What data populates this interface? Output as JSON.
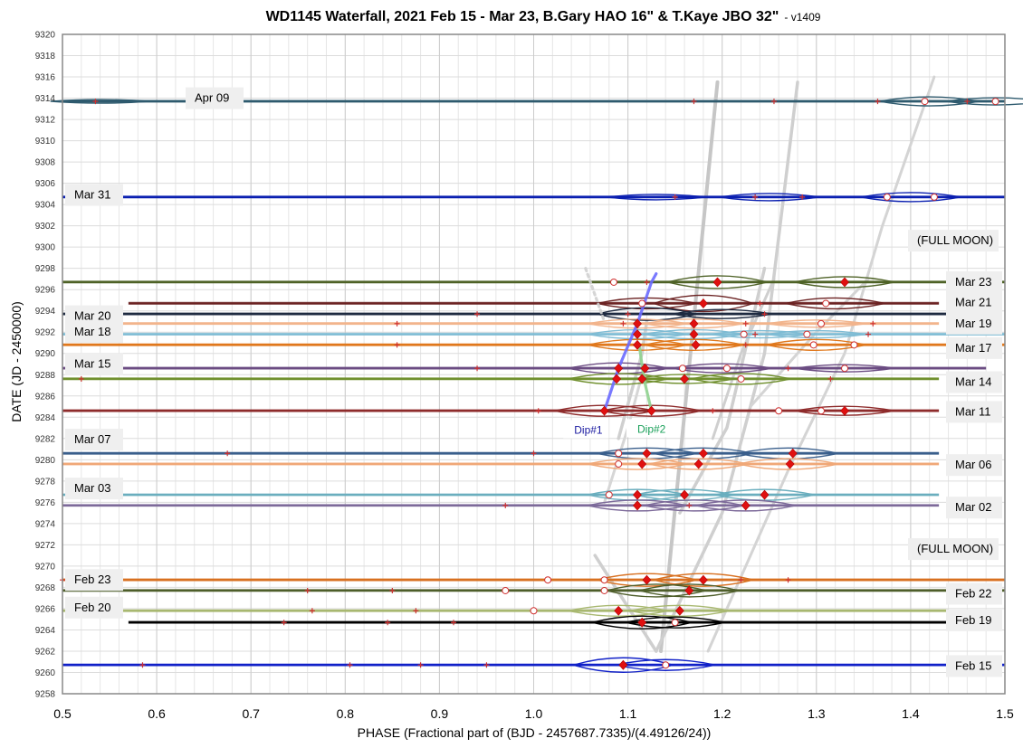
{
  "chart_data": {
    "type": "line",
    "title": "WD1145 Waterfall, 2021 Feb 15 - Mar 23, B.Gary HAO 16\" & T.Kaye JBO 32\"",
    "title_suffix": "- v1409",
    "xlabel": "PHASE (Fractional part of (BJD - 2457687.7335)/(4.49126/24))",
    "ylabel": "DATE (JD - 2450000)",
    "xlim": [
      0.5,
      1.5
    ],
    "ylim": [
      9258,
      9320
    ],
    "x_ticks": [
      "0.5",
      "0.6",
      "0.7",
      "0.8",
      "0.9",
      "1.0",
      "1.1",
      "1.2",
      "1.3",
      "1.4",
      "1.5"
    ],
    "y_ticks": [
      "9258",
      "9260",
      "9262",
      "9264",
      "9266",
      "9268",
      "9270",
      "9272",
      "9274",
      "9276",
      "9278",
      "9280",
      "9282",
      "9284",
      "9286",
      "9288",
      "9290",
      "9292",
      "9294",
      "9296",
      "9298",
      "9300",
      "9302",
      "9304",
      "9306",
      "9308",
      "9310",
      "9312",
      "9314",
      "9316",
      "9318",
      "9320"
    ],
    "grid": true,
    "traces": [
      {
        "date": "Apr 09",
        "y": 9313.7,
        "x0": 0.5,
        "x1": 1.5,
        "color": "#2e5a6e",
        "bumps": [
          [
            1.42,
            0.5
          ],
          [
            1.49,
            0.4
          ],
          [
            0.54,
            0.2
          ]
        ],
        "diamonds": [],
        "circles": [
          1.415,
          1.49
        ],
        "crosses": [
          0.535,
          1.17,
          1.255,
          1.365,
          1.46
        ]
      },
      {
        "date": "Mar 31",
        "y": 9304.7,
        "x0": 0.5,
        "x1": 1.5,
        "color": "#0a1fb0",
        "bumps": [
          [
            1.4,
            0.5
          ],
          [
            1.25,
            0.4
          ],
          [
            1.13,
            0.3
          ]
        ],
        "diamonds": [],
        "circles": [
          1.375,
          1.425
        ],
        "crosses": [
          1.15,
          1.235,
          1.285
        ]
      },
      {
        "date": "Mar 23",
        "y": 9296.7,
        "x0": 0.5,
        "x1": 1.5,
        "color": "#4e6226",
        "bumps": [
          [
            1.195,
            0.7
          ],
          [
            1.33,
            0.6
          ]
        ],
        "diamonds": [
          1.195,
          1.33
        ],
        "circles": [
          1.085
        ],
        "crosses": [
          1.12
        ]
      },
      {
        "date": "Mar 21",
        "y": 9294.7,
        "x0": 0.57,
        "x1": 1.43,
        "color": "#6b2222",
        "bumps": [
          [
            1.12,
            0.6
          ],
          [
            1.18,
            0.9
          ],
          [
            1.32,
            0.6
          ]
        ],
        "diamonds": [
          1.18
        ],
        "circles": [
          1.115,
          1.31
        ],
        "crosses": [
          1.24
        ]
      },
      {
        "date": "Mar 20",
        "y": 9293.7,
        "x0": 0.5,
        "x1": 1.45,
        "color": "#1e2a40",
        "bumps": [
          [
            1.12,
            0.7
          ],
          [
            1.2,
            0.5
          ]
        ],
        "diamonds": [],
        "circles": [],
        "crosses": [
          0.94,
          1.1,
          1.245
        ]
      },
      {
        "date": "Mar 19",
        "y": 9292.8,
        "x0": 0.55,
        "x1": 1.43,
        "color": "#f2b48c",
        "bumps": [
          [
            1.11,
            0.5
          ],
          [
            1.17,
            0.5
          ],
          [
            1.3,
            0.4
          ]
        ],
        "diamonds": [
          1.11,
          1.17
        ],
        "circles": [
          1.305
        ],
        "crosses": [
          0.855,
          1.095,
          1.225,
          1.36
        ]
      },
      {
        "date": "Mar 18",
        "y": 9291.8,
        "x0": 0.5,
        "x1": 1.5,
        "color": "#7fbcd4",
        "bumps": [
          [
            1.11,
            0.5
          ],
          [
            1.17,
            0.5
          ],
          [
            1.24,
            0.4
          ],
          [
            1.3,
            0.4
          ]
        ],
        "diamonds": [
          1.11,
          1.17
        ],
        "circles": [
          1.223,
          1.29
        ],
        "crosses": [
          1.235,
          1.355
        ]
      },
      {
        "date": "Mar 17",
        "y": 9290.8,
        "x0": 0.5,
        "x1": 1.5,
        "color": "#e0781c",
        "bumps": [
          [
            1.11,
            0.6
          ],
          [
            1.17,
            0.6
          ],
          [
            1.3,
            0.6
          ]
        ],
        "diamonds": [
          1.11,
          1.172
        ],
        "circles": [
          1.297,
          1.34
        ],
        "crosses": [
          0.855,
          1.225
        ]
      },
      {
        "date": "Mar 15",
        "y": 9288.6,
        "x0": 0.5,
        "x1": 1.48,
        "color": "#6b4c82",
        "bumps": [
          [
            1.09,
            0.6
          ],
          [
            1.2,
            0.5
          ],
          [
            1.33,
            0.4
          ]
        ],
        "diamonds": [
          1.09,
          1.118
        ],
        "circles": [
          1.158,
          1.205,
          1.33
        ],
        "crosses": [
          0.94,
          1.27
        ]
      },
      {
        "date": "Mar 14",
        "y": 9287.6,
        "x0": 0.5,
        "x1": 1.43,
        "color": "#70902e",
        "bumps": [
          [
            1.09,
            0.6
          ],
          [
            1.16,
            0.5
          ],
          [
            1.22,
            0.6
          ]
        ],
        "diamonds": [
          1.088,
          1.115,
          1.16
        ],
        "circles": [
          1.22
        ],
        "crosses": [
          0.52,
          1.315
        ]
      },
      {
        "date": "Mar 11",
        "y": 9284.6,
        "x0": 0.5,
        "x1": 1.43,
        "color": "#8e2b2b",
        "bumps": [
          [
            1.075,
            0.6
          ],
          [
            1.125,
            0.6
          ],
          [
            1.33,
            0.5
          ]
        ],
        "diamonds": [
          1.075,
          1.125,
          1.33
        ],
        "circles": [
          1.26,
          1.305
        ],
        "crosses": [
          1.005,
          1.19
        ]
      },
      {
        "date": "Mar 07",
        "y": 9280.6,
        "x0": 0.5,
        "x1": 1.43,
        "color": "#3a5f8c",
        "bumps": [
          [
            1.12,
            0.6
          ],
          [
            1.18,
            0.6
          ],
          [
            1.27,
            0.6
          ]
        ],
        "diamonds": [
          1.12,
          1.18,
          1.275
        ],
        "circles": [
          1.09
        ],
        "crosses": [
          0.675,
          1.0
        ]
      },
      {
        "date": "Mar 06",
        "y": 9279.6,
        "x0": 0.5,
        "x1": 1.43,
        "color": "#f0a878",
        "bumps": [
          [
            1.11,
            0.6
          ],
          [
            1.175,
            0.6
          ],
          [
            1.27,
            0.6
          ]
        ],
        "diamonds": [
          1.115,
          1.175,
          1.272
        ],
        "circles": [
          1.09
        ],
        "crosses": []
      },
      {
        "date": "Mar 03",
        "y": 9276.7,
        "x0": 0.5,
        "x1": 1.43,
        "color": "#6aaebe",
        "bumps": [
          [
            1.11,
            0.6
          ],
          [
            1.16,
            0.6
          ],
          [
            1.245,
            0.6
          ]
        ],
        "diamonds": [
          1.11,
          1.16,
          1.245
        ],
        "circles": [
          1.08
        ],
        "crosses": []
      },
      {
        "date": "Mar 02",
        "y": 9275.7,
        "x0": 0.5,
        "x1": 1.43,
        "color": "#7d6a9a",
        "bumps": [
          [
            1.11,
            0.6
          ],
          [
            1.17,
            0.6
          ],
          [
            1.225,
            0.6
          ]
        ],
        "diamonds": [
          1.11,
          1.225
        ],
        "circles": [],
        "crosses": [
          0.97,
          1.165
        ]
      },
      {
        "date": "Feb 23",
        "y": 9268.7,
        "x0": 0.5,
        "x1": 1.5,
        "color": "#d87020",
        "bumps": [
          [
            1.12,
            0.7
          ],
          [
            1.18,
            0.7
          ]
        ],
        "diamonds": [
          1.12,
          1.18
        ],
        "circles": [
          1.015,
          1.075
        ],
        "crosses": [
          0.5,
          1.22,
          1.27
        ]
      },
      {
        "date": "Feb 22",
        "y": 9267.7,
        "x0": 0.5,
        "x1": 1.5,
        "color": "#4e5e2a",
        "bumps": [
          [
            1.13,
            0.7
          ],
          [
            1.165,
            0.7
          ]
        ],
        "diamonds": [
          1.165
        ],
        "circles": [
          0.97,
          1.075
        ],
        "crosses": [
          0.76,
          0.85
        ]
      },
      {
        "date": "Feb 20",
        "y": 9265.8,
        "x0": 0.5,
        "x1": 1.44,
        "color": "#a8b870",
        "bumps": [
          [
            1.09,
            0.6
          ],
          [
            1.155,
            0.6
          ]
        ],
        "diamonds": [
          1.09,
          1.155
        ],
        "circles": [
          1.0
        ],
        "crosses": [
          0.765,
          0.875
        ]
      },
      {
        "date": "Feb 19",
        "y": 9264.7,
        "x0": 0.57,
        "x1": 1.44,
        "color": "#000000",
        "bumps": [
          [
            1.115,
            0.7
          ],
          [
            1.15,
            0.6
          ]
        ],
        "diamonds": [
          1.115
        ],
        "circles": [
          1.15
        ],
        "crosses": [
          0.735,
          0.845,
          0.915
        ]
      },
      {
        "date": "Feb 15",
        "y": 9260.7,
        "x0": 0.5,
        "x1": 1.5,
        "color": "#1020c8",
        "bumps": [
          [
            1.095,
            0.8
          ],
          [
            1.14,
            0.6
          ]
        ],
        "diamonds": [
          1.095
        ],
        "circles": [
          1.14
        ],
        "crosses": [
          0.585,
          0.805,
          0.88,
          0.95
        ]
      }
    ],
    "drift_lines": [
      {
        "color": "#c6c6c6",
        "width": 4,
        "points": [
          [
            1.135,
            9262
          ],
          [
            1.195,
            9315.5
          ]
        ]
      },
      {
        "color": "#cfcfcf",
        "width": 3.5,
        "points": [
          [
            1.065,
            9271
          ],
          [
            1.13,
            9262
          ]
        ]
      },
      {
        "color": "#cfcfcf",
        "width": 3.5,
        "points": [
          [
            1.13,
            9262
          ],
          [
            1.2,
            9275
          ],
          [
            1.245,
            9290
          ],
          [
            1.28,
            9315.5
          ]
        ]
      },
      {
        "color": "#cfcfcf",
        "width": 3.5,
        "points": [
          [
            1.155,
            9275
          ],
          [
            1.205,
            9283
          ],
          [
            1.245,
            9298
          ]
        ]
      },
      {
        "color": "#d4d4d4",
        "width": 3,
        "points": [
          [
            1.185,
            9262
          ],
          [
            1.27,
            9279
          ],
          [
            1.33,
            9290
          ],
          [
            1.37,
            9302
          ],
          [
            1.425,
            9316
          ]
        ]
      },
      {
        "color": "#cfcfcf",
        "width": 3,
        "points": [
          [
            1.19,
            9282
          ],
          [
            1.22,
            9290
          ],
          [
            1.255,
            9297
          ]
        ]
      },
      {
        "color": "#d4d4d4",
        "width": 3,
        "points": [
          [
            1.23,
            9285
          ],
          [
            1.3,
            9292
          ],
          [
            1.355,
            9297
          ]
        ]
      },
      {
        "color": "#cfcfcf",
        "width": 3.5,
        "points": [
          [
            1.09,
            9282
          ],
          [
            1.115,
            9290
          ],
          [
            1.12,
            9293
          ]
        ]
      },
      {
        "color": "#d6d6d6",
        "width": 3,
        "points": [
          [
            1.075,
            9276
          ],
          [
            1.1,
            9283
          ],
          [
            1.115,
            9288
          ]
        ]
      }
    ],
    "dip_lines": [
      {
        "name": "Dip#1",
        "color": "#6a6aff",
        "points": [
          [
            1.075,
            9284.6
          ],
          [
            1.09,
            9288.6
          ],
          [
            1.11,
            9292.8
          ],
          [
            1.125,
            9296.7
          ],
          [
            1.13,
            9297.5
          ]
        ]
      },
      {
        "name": "Dip#2",
        "color": "#8fd18f",
        "points": [
          [
            1.125,
            9284.6
          ],
          [
            1.117,
            9287.6
          ],
          [
            1.112,
            9290.8
          ]
        ]
      },
      {
        "name": "",
        "color": "#d0d0d0",
        "dashed": true,
        "points": [
          [
            1.055,
            9298
          ],
          [
            1.075,
            9293
          ]
        ]
      }
    ],
    "annotations": [
      {
        "text": "Dip#1",
        "x": 1.043,
        "y": 9282.7,
        "color": "#1a1aa0"
      },
      {
        "text": "Dip#2",
        "x": 1.11,
        "y": 9282.8,
        "color": "#1aa05a"
      }
    ],
    "labels_left": [
      {
        "text": "Apr 09",
        "y": 9314.0
      },
      {
        "text": "Mar 31",
        "y": 9304.9
      },
      {
        "text": "Mar 20",
        "y": 9293.5
      },
      {
        "text": "Mar 18",
        "y": 9292.0
      },
      {
        "text": "Mar 15",
        "y": 9289.0
      },
      {
        "text": "Mar 07",
        "y": 9281.9
      },
      {
        "text": "Mar 03",
        "y": 9277.3
      },
      {
        "text": "Feb 23",
        "y": 9268.7
      },
      {
        "text": "Feb 20",
        "y": 9266.1
      }
    ],
    "labels_right": [
      {
        "text": "(FULL MOON)",
        "y": 9300.6
      },
      {
        "text": "Mar 23",
        "y": 9296.7
      },
      {
        "text": "Mar 21",
        "y": 9294.8
      },
      {
        "text": "Mar 19",
        "y": 9292.8
      },
      {
        "text": "Mar 17",
        "y": 9290.5
      },
      {
        "text": "Mar 14",
        "y": 9287.3
      },
      {
        "text": "Mar 11",
        "y": 9284.5
      },
      {
        "text": "Mar 06",
        "y": 9279.5
      },
      {
        "text": "Mar 02",
        "y": 9275.5
      },
      {
        "text": "(FULL MOON)",
        "y": 9271.6
      },
      {
        "text": "Feb 22",
        "y": 9267.4
      },
      {
        "text": "Feb 19",
        "y": 9264.9
      },
      {
        "text": "Feb 15",
        "y": 9260.6
      }
    ]
  }
}
